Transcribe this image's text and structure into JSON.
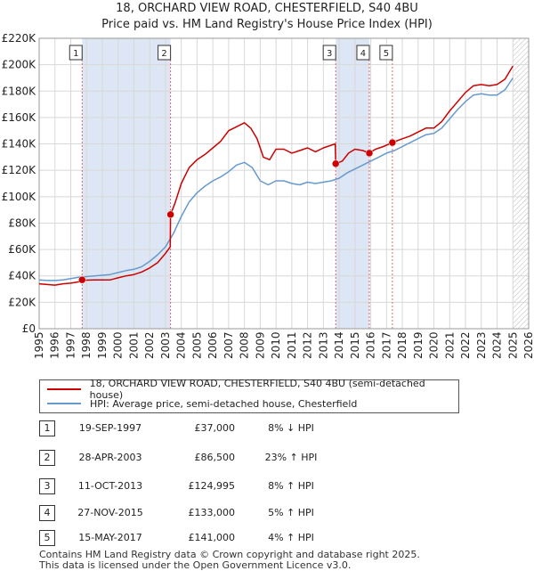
{
  "title": "18, ORCHARD VIEW ROAD, CHESTERFIELD, S40 4BU",
  "subtitle": "Price paid vs. HM Land Registry's House Price Index (HPI)",
  "colors": {
    "red": "#cc0000",
    "blue": "#6699cc",
    "band": "#dde6f4",
    "grid": "#d8d8d8"
  },
  "chart_data": {
    "type": "line",
    "xlim": [
      1995,
      2026
    ],
    "ylim": [
      0,
      220000
    ],
    "x_ticks": [
      "1995",
      "1996",
      "1997",
      "1998",
      "1999",
      "2000",
      "2001",
      "2002",
      "2003",
      "2004",
      "2005",
      "2006",
      "2007",
      "2008",
      "2009",
      "2010",
      "2011",
      "2012",
      "2013",
      "2014",
      "2015",
      "2016",
      "2017",
      "2018",
      "2019",
      "2020",
      "2021",
      "2022",
      "2023",
      "2024",
      "2025",
      "2026"
    ],
    "y_ticks": [
      {
        "value": 0,
        "label": "£0"
      },
      {
        "value": 20000,
        "label": "£20K"
      },
      {
        "value": 40000,
        "label": "£40K"
      },
      {
        "value": 60000,
        "label": "£60K"
      },
      {
        "value": 80000,
        "label": "£80K"
      },
      {
        "value": 100000,
        "label": "£100K"
      },
      {
        "value": 120000,
        "label": "£120K"
      },
      {
        "value": 140000,
        "label": "£140K"
      },
      {
        "value": 160000,
        "label": "£160K"
      },
      {
        "value": 180000,
        "label": "£180K"
      },
      {
        "value": 200000,
        "label": "£200K"
      },
      {
        "value": 220000,
        "label": "£220K"
      }
    ],
    "series": [
      {
        "name": "18, ORCHARD VIEW ROAD, CHESTERFIELD, S40 4BU (semi-detached house)",
        "color": "#cc0000",
        "points": [
          [
            1995.0,
            34000
          ],
          [
            1995.5,
            33500
          ],
          [
            1996.0,
            33000
          ],
          [
            1996.5,
            34000
          ],
          [
            1997.0,
            34500
          ],
          [
            1997.5,
            35500
          ],
          [
            1997.72,
            37000
          ],
          [
            1998.0,
            36800
          ],
          [
            1998.5,
            37000
          ],
          [
            1999.0,
            37000
          ],
          [
            1999.5,
            37000
          ],
          [
            2000.0,
            38500
          ],
          [
            2000.5,
            40000
          ],
          [
            2001.0,
            41000
          ],
          [
            2001.5,
            43000
          ],
          [
            2002.0,
            46000
          ],
          [
            2002.5,
            50000
          ],
          [
            2003.0,
            57000
          ],
          [
            2003.3,
            62000
          ],
          [
            2003.32,
            86500
          ],
          [
            2003.6,
            95000
          ],
          [
            2004.0,
            110000
          ],
          [
            2004.5,
            122000
          ],
          [
            2005.0,
            128000
          ],
          [
            2005.5,
            132000
          ],
          [
            2006.0,
            137000
          ],
          [
            2006.5,
            142000
          ],
          [
            2007.0,
            150000
          ],
          [
            2007.5,
            153000
          ],
          [
            2008.0,
            156000
          ],
          [
            2008.4,
            152000
          ],
          [
            2008.8,
            144000
          ],
          [
            2009.2,
            130000
          ],
          [
            2009.6,
            128000
          ],
          [
            2010.0,
            136000
          ],
          [
            2010.5,
            136000
          ],
          [
            2011.0,
            133000
          ],
          [
            2011.5,
            135000
          ],
          [
            2012.0,
            137000
          ],
          [
            2012.5,
            134000
          ],
          [
            2013.0,
            137000
          ],
          [
            2013.5,
            139000
          ],
          [
            2013.75,
            140000
          ],
          [
            2013.78,
            124995
          ],
          [
            2014.2,
            127000
          ],
          [
            2014.6,
            133000
          ],
          [
            2015.0,
            136000
          ],
          [
            2015.5,
            135000
          ],
          [
            2015.9,
            133000
          ],
          [
            2016.3,
            136000
          ],
          [
            2016.8,
            138000
          ],
          [
            2017.37,
            141000
          ],
          [
            2017.8,
            143000
          ],
          [
            2018.5,
            146000
          ],
          [
            2019.0,
            149000
          ],
          [
            2019.5,
            152000
          ],
          [
            2020.0,
            152000
          ],
          [
            2020.5,
            157000
          ],
          [
            2021.0,
            165000
          ],
          [
            2021.5,
            172000
          ],
          [
            2022.0,
            179000
          ],
          [
            2022.5,
            184000
          ],
          [
            2023.0,
            185000
          ],
          [
            2023.5,
            184000
          ],
          [
            2024.0,
            185000
          ],
          [
            2024.5,
            189000
          ],
          [
            2025.0,
            199000
          ]
        ]
      },
      {
        "name": "HPI: Average price, semi-detached house, Chesterfield",
        "color": "#6699cc",
        "points": [
          [
            1995.0,
            37000
          ],
          [
            1995.5,
            36500
          ],
          [
            1996.0,
            36500
          ],
          [
            1996.5,
            37000
          ],
          [
            1997.0,
            38000
          ],
          [
            1997.5,
            39000
          ],
          [
            1998.0,
            39500
          ],
          [
            1998.5,
            40000
          ],
          [
            1999.0,
            40500
          ],
          [
            1999.5,
            41000
          ],
          [
            2000.0,
            42500
          ],
          [
            2000.5,
            44000
          ],
          [
            2001.0,
            45000
          ],
          [
            2001.5,
            47000
          ],
          [
            2002.0,
            51000
          ],
          [
            2002.5,
            56000
          ],
          [
            2003.0,
            62000
          ],
          [
            2003.5,
            72000
          ],
          [
            2004.0,
            85000
          ],
          [
            2004.5,
            96000
          ],
          [
            2005.0,
            103000
          ],
          [
            2005.5,
            108000
          ],
          [
            2006.0,
            112000
          ],
          [
            2006.5,
            115000
          ],
          [
            2007.0,
            119000
          ],
          [
            2007.5,
            124000
          ],
          [
            2008.0,
            126000
          ],
          [
            2008.5,
            122000
          ],
          [
            2009.0,
            112000
          ],
          [
            2009.5,
            109000
          ],
          [
            2010.0,
            112000
          ],
          [
            2010.5,
            112000
          ],
          [
            2011.0,
            110000
          ],
          [
            2011.5,
            109000
          ],
          [
            2012.0,
            111000
          ],
          [
            2012.5,
            110000
          ],
          [
            2013.0,
            111000
          ],
          [
            2013.5,
            112000
          ],
          [
            2014.0,
            114000
          ],
          [
            2014.5,
            118000
          ],
          [
            2015.0,
            121000
          ],
          [
            2015.5,
            124000
          ],
          [
            2016.0,
            127000
          ],
          [
            2016.5,
            130000
          ],
          [
            2017.0,
            133000
          ],
          [
            2017.5,
            135000
          ],
          [
            2018.0,
            138000
          ],
          [
            2018.5,
            141000
          ],
          [
            2019.0,
            144000
          ],
          [
            2019.5,
            147000
          ],
          [
            2020.0,
            148000
          ],
          [
            2020.5,
            152000
          ],
          [
            2021.0,
            159000
          ],
          [
            2021.5,
            166000
          ],
          [
            2022.0,
            172000
          ],
          [
            2022.5,
            177000
          ],
          [
            2023.0,
            178000
          ],
          [
            2023.5,
            177000
          ],
          [
            2024.0,
            177000
          ],
          [
            2024.5,
            181000
          ],
          [
            2025.0,
            190000
          ]
        ]
      }
    ],
    "sales": [
      {
        "label": "1",
        "x": 1997.72,
        "price": 37000
      },
      {
        "label": "2",
        "x": 2003.32,
        "price": 86500
      },
      {
        "label": "3",
        "x": 2013.78,
        "price": 124995
      },
      {
        "label": "4",
        "x": 2015.91,
        "price": 133000
      },
      {
        "label": "5",
        "x": 2017.37,
        "price": 141000
      }
    ],
    "shaded_spans": [
      [
        1997.72,
        2003.32
      ],
      [
        2013.78,
        2015.91
      ],
      [
        2017.37,
        2017.37
      ]
    ],
    "hatched_from": 2025.0,
    "grid": true
  },
  "legend": [
    {
      "label": "18, ORCHARD VIEW ROAD, CHESTERFIELD, S40 4BU (semi-detached house)",
      "color": "#cc0000"
    },
    {
      "label": "HPI: Average price, semi-detached house, Chesterfield",
      "color": "#6699cc"
    }
  ],
  "transactions": [
    {
      "num": "1",
      "date": "19-SEP-1997",
      "price": "£37,000",
      "hpi": "8% ↓ HPI"
    },
    {
      "num": "2",
      "date": "28-APR-2003",
      "price": "£86,500",
      "hpi": "23% ↑ HPI"
    },
    {
      "num": "3",
      "date": "11-OCT-2013",
      "price": "£124,995",
      "hpi": "8% ↑ HPI"
    },
    {
      "num": "4",
      "date": "27-NOV-2015",
      "price": "£133,000",
      "hpi": "5% ↑ HPI"
    },
    {
      "num": "5",
      "date": "15-MAY-2017",
      "price": "£141,000",
      "hpi": "4% ↑ HPI"
    }
  ],
  "footer": {
    "line1": "Contains HM Land Registry data © Crown copyright and database right 2025.",
    "line2": "This data is licensed under the Open Government Licence v3.0."
  }
}
